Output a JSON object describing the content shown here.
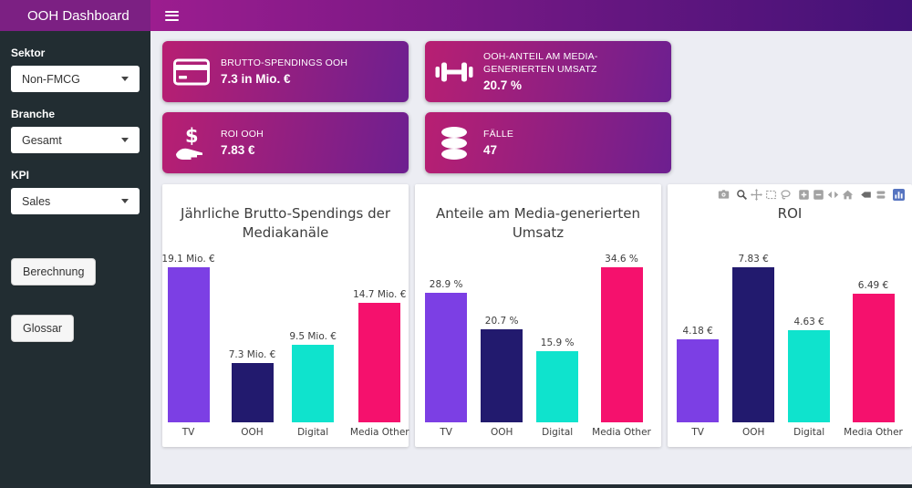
{
  "app": {
    "title": "OOH Dashboard"
  },
  "sidebar": {
    "controls": [
      {
        "label": "Sektor",
        "value": "Non-FMCG"
      },
      {
        "label": "Branche",
        "value": "Gesamt"
      },
      {
        "label": "KPI",
        "value": "Sales"
      }
    ],
    "buttons": [
      {
        "label": "Berechnung"
      },
      {
        "label": "Glossar"
      }
    ]
  },
  "kpi_cards": [
    {
      "icon": "credit-card-icon",
      "label": "BRUTTO-SPENDINGS OOH",
      "value": "7.3 in Mio. €"
    },
    {
      "icon": "dumbbell-icon",
      "label": "OOH-ANTEIL AM MEDIA-GENERIERTEN UMSATZ",
      "value": "20.7 %"
    },
    {
      "icon": "hand-dollar-icon",
      "label": "ROI OOH",
      "value": "7.83 €"
    },
    {
      "icon": "database-icon",
      "label": "FÄLLE",
      "value": "47"
    }
  ],
  "chart_data": [
    {
      "type": "bar",
      "title": "Jährliche Brutto-Spendings der Mediakanäle",
      "categories": [
        "TV",
        "OOH",
        "Digital",
        "Media Other"
      ],
      "values": [
        19.1,
        7.3,
        9.5,
        14.7
      ],
      "value_labels": [
        "19.1 Mio. €",
        "7.3 Mio. €",
        "9.5 Mio. €",
        "14.7 Mio. €"
      ],
      "unit": "Mio. €",
      "ylim": [
        0,
        19.1
      ],
      "grid": false,
      "colors": [
        "#7c3fe4",
        "#221a6e",
        "#0fe3cd",
        "#f5116d"
      ]
    },
    {
      "type": "bar",
      "title": "Anteile am Media-generierten Umsatz",
      "categories": [
        "TV",
        "OOH",
        "Digital",
        "Media Other"
      ],
      "values": [
        28.9,
        20.7,
        15.9,
        34.6
      ],
      "value_labels": [
        "28.9 %",
        "20.7 %",
        "15.9 %",
        "34.6 %"
      ],
      "unit": "%",
      "ylim": [
        0,
        34.6
      ],
      "grid": false,
      "colors": [
        "#7c3fe4",
        "#221a6e",
        "#0fe3cd",
        "#f5116d"
      ]
    },
    {
      "type": "bar",
      "title": "ROI",
      "categories": [
        "TV",
        "OOH",
        "Digital",
        "Media Other"
      ],
      "values": [
        4.18,
        7.83,
        4.63,
        6.49
      ],
      "value_labels": [
        "4.18 €",
        "7.83 €",
        "4.63 €",
        "6.49 €"
      ],
      "unit": "€",
      "ylim": [
        0,
        7.83
      ],
      "grid": false,
      "colors": [
        "#7c3fe4",
        "#221a6e",
        "#0fe3cd",
        "#f5116d"
      ]
    }
  ],
  "modebar": {
    "icons": [
      "camera",
      "zoom",
      "pan",
      "box-select",
      "lasso-select",
      "zoom-in",
      "zoom-out",
      "autoscale",
      "reset-axes",
      "hover-closest",
      "hover-compare",
      "plotly-logo"
    ]
  },
  "colors": {
    "navbar_left": "#9c1d8f",
    "navbar_right": "#421277",
    "logo_bg": "#7c2083",
    "sidebar_bg": "#222d32",
    "main_bg": "#ecedf3",
    "card_gradient_start": "#b81f72",
    "card_gradient_end": "#6d1f90",
    "bar_tv": "#7c3fe4",
    "bar_ooh": "#221a6e",
    "bar_digital": "#0fe3cd",
    "bar_media_other": "#f5116d"
  }
}
